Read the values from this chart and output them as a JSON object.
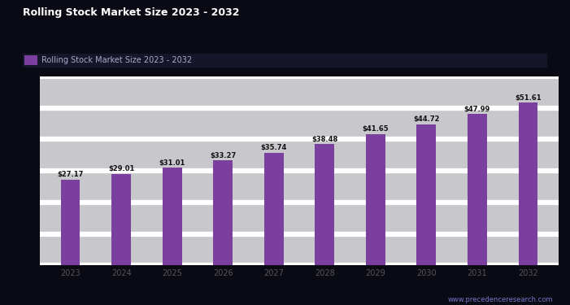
{
  "title": "Rolling Stock Market Size 2023 - 2032",
  "legend_label": "Rolling Stock Market Size 2023 - 2032",
  "categories": [
    "2023",
    "2024",
    "2025",
    "2026",
    "2027",
    "2028",
    "2029",
    "2030",
    "2031",
    "2032"
  ],
  "values": [
    27.17,
    29.01,
    31.01,
    33.27,
    35.74,
    38.48,
    41.65,
    44.72,
    47.99,
    51.61
  ],
  "bar_color": "#7B3FA0",
  "background_color": "#0a0a14",
  "plot_bg_color": "#c8c8cc",
  "grid_color": "#ffffff",
  "ylim": [
    0,
    60
  ],
  "ytick_count": 7,
  "title_fontsize": 9,
  "tick_fontsize": 7,
  "value_fontsize": 6,
  "xtick_color": "#555555",
  "source_text": "www.precedenceresearch.com",
  "source_color": "#7777cc"
}
